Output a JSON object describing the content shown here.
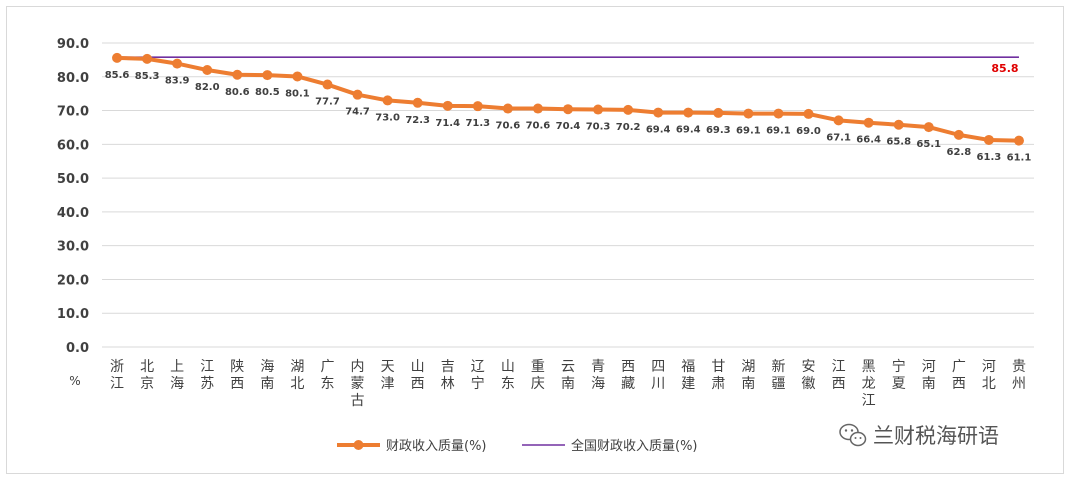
{
  "chart_data": {
    "type": "line",
    "title": "",
    "xlabel": "",
    "ylabel": "",
    "y_unit_label": "%",
    "ylim": [
      0,
      90
    ],
    "yticks": [
      "0.0",
      "10.0",
      "20.0",
      "30.0",
      "40.0",
      "50.0",
      "60.0",
      "70.0",
      "80.0",
      "90.0"
    ],
    "grid": true,
    "legend_position": "bottom",
    "categories": [
      "浙江",
      "北京",
      "上海",
      "江苏",
      "陕西",
      "海南",
      "湖北",
      "广东",
      "内蒙古",
      "天津",
      "山西",
      "吉林",
      "辽宁",
      "山东",
      "重庆",
      "云南",
      "青海",
      "西藏",
      "四川",
      "福建",
      "甘肃",
      "湖南",
      "新疆",
      "安徽",
      "江西",
      "黑龙江",
      "宁夏",
      "河南",
      "广西",
      "河北",
      "贵州"
    ],
    "series": [
      {
        "name": "财政收入质量(%)",
        "color": "#ed7d31",
        "values": [
          85.6,
          85.3,
          83.9,
          82.0,
          80.6,
          80.5,
          80.1,
          77.7,
          74.7,
          73.0,
          72.3,
          71.4,
          71.3,
          70.6,
          70.6,
          70.4,
          70.3,
          70.2,
          69.4,
          69.4,
          69.3,
          69.1,
          69.1,
          69.0,
          67.1,
          66.4,
          65.8,
          65.1,
          62.8,
          61.3,
          61.1
        ],
        "data_labels": [
          "85.6",
          "85.3",
          "83.9",
          "82.0",
          "80.6",
          "80.5",
          "80.1",
          "77.7",
          "74.7",
          "73.0",
          "72.3",
          "71.4",
          "71.3",
          "70.6",
          "70.6",
          "70.4",
          "70.3",
          "70.2",
          "69.4",
          "69.4",
          "69.3",
          "69.1",
          "69.1",
          "69.0",
          "67.1",
          "66.4",
          "65.8",
          "65.1",
          "62.8",
          "61.3",
          "61.1"
        ]
      },
      {
        "name": "全国财政收入质量(%)",
        "color": "#7030a0",
        "value": 85.8,
        "label": "85.8",
        "label_color": "#e00000"
      }
    ]
  },
  "watermark": {
    "text": "兰财税海研语",
    "icon": "wechat-icon"
  }
}
